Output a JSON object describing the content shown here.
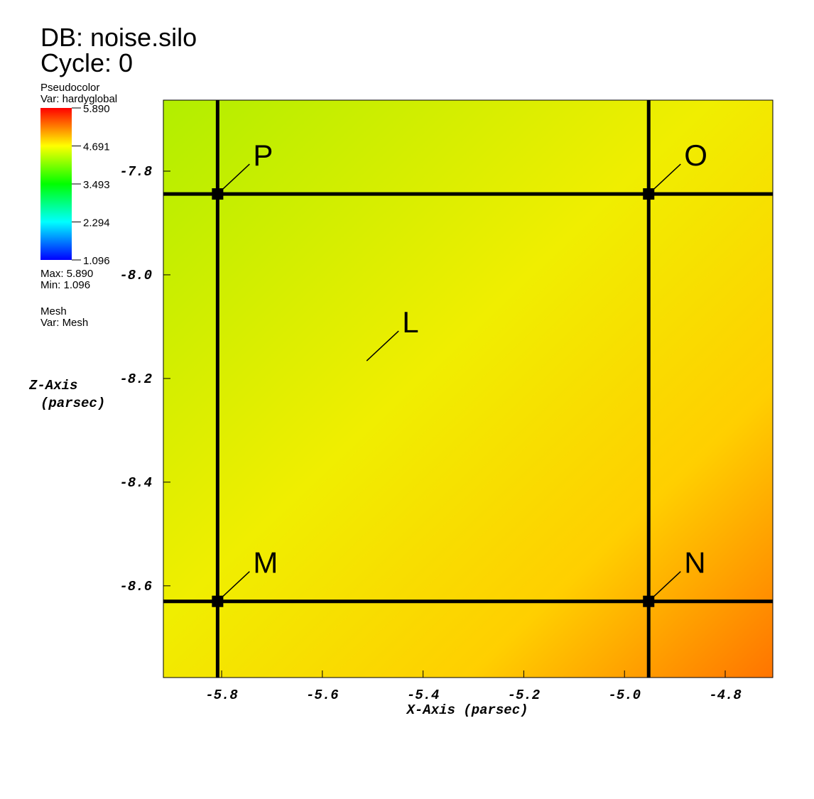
{
  "chart_data": {
    "type": "pseudocolor",
    "title": "DB: noise.silo",
    "subtitle": "Cycle: 0",
    "plot_name": "Pseudocolor",
    "variable": "Var: hardyglobal",
    "max_label": "Max: 5.890",
    "min_label": "Min: 1.096",
    "mesh_name": "Mesh",
    "mesh_variable": "Var: Mesh",
    "xlabel": "X-Axis (parsec)",
    "ylabel": [
      "Z-Axis",
      "(parsec)"
    ],
    "xlim": [
      -5.9157,
      -4.7055
    ],
    "ylim": [
      -8.777,
      -7.663
    ],
    "xticks": [
      -5.8,
      -5.6,
      -5.4,
      -5.2,
      {
        "value": -5,
        "label": "-5.0"
      },
      -4.8
    ],
    "yticks": [
      -7.8,
      {
        "value": -8,
        "label": "-8.0"
      },
      -8.2,
      -8.4,
      -8.6
    ],
    "colorbar_lim": [
      1.096,
      5.89
    ],
    "colorbar_ticks": [
      1.096,
      2.294,
      3.493,
      4.691,
      {
        "value": 5.89,
        "label": "5.890"
      }
    ],
    "mesh_x": [
      -5.808,
      -4.952
    ],
    "mesh_z": [
      -7.844,
      -8.63
    ],
    "points": [
      {
        "label": "P",
        "x": -5.808,
        "z": -7.844,
        "node": true
      },
      {
        "label": "O",
        "x": -4.952,
        "z": -7.844,
        "node": true
      },
      {
        "label": "M",
        "x": -5.808,
        "z": -8.63,
        "node": true
      },
      {
        "label": "N",
        "x": -4.952,
        "z": -8.63,
        "node": true
      },
      {
        "label": "L",
        "x": -5.512,
        "z": -8.166,
        "node": false
      }
    ]
  }
}
